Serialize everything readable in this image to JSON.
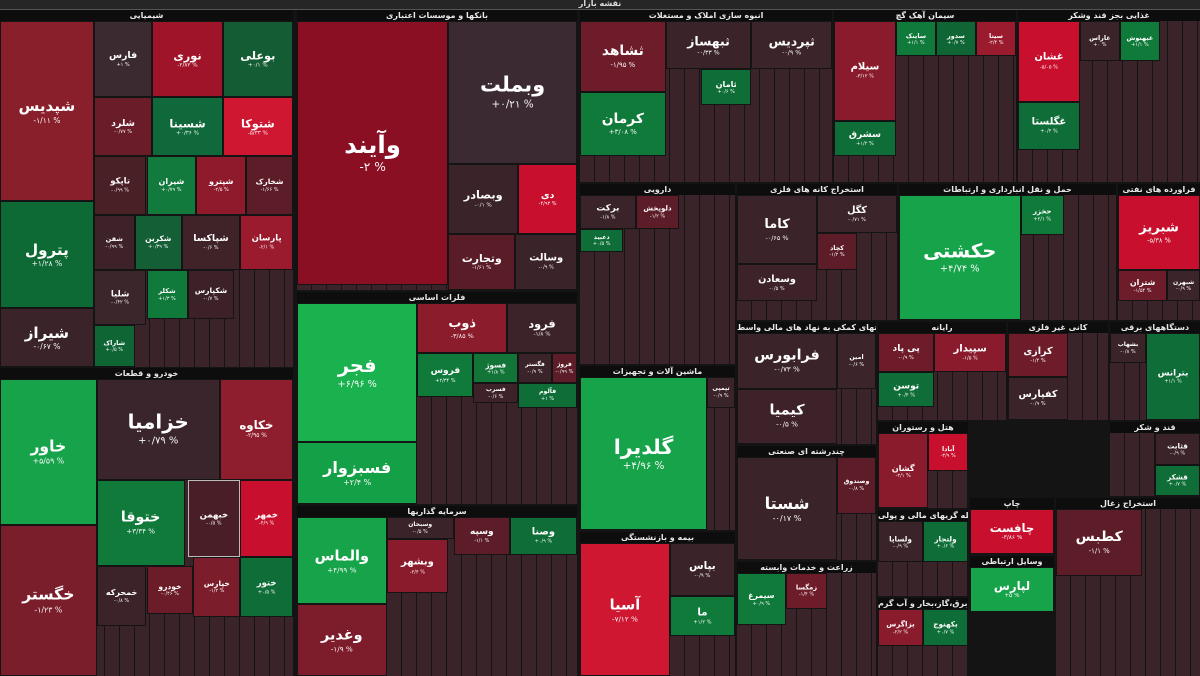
{
  "header": {
    "title": "نقشه بازار"
  },
  "legend": {
    "negative": "#5a1a26",
    "positive": "#0f7a3a",
    "strong_negative": "#c8102e",
    "strong_positive": "#16a34a"
  },
  "sections": [
    {
      "id": "chem",
      "title": "شیمیایی",
      "tiles": [
        {
          "n": "شپدیس",
          "p": "-۱/۱۱ %",
          "c": "#8a1f2c"
        },
        {
          "n": "پترول",
          "p": "+۱/۲۸ %",
          "c": "#0e6a35"
        },
        {
          "n": "شیراز",
          "p": "-۰/۶۷ %",
          "c": "#3a2329"
        },
        {
          "n": "فارس",
          "p": "+۱ %",
          "c": "#3c2a31"
        },
        {
          "n": "نوری",
          "p": "-۲/۸۲ %",
          "c": "#a0142a"
        },
        {
          "n": "بوعلی",
          "p": "+۰/۱ %",
          "c": "#145c33"
        },
        {
          "n": "شلرد",
          "p": "-۰/۷۷ %",
          "c": "#6a1c28"
        },
        {
          "n": "شسینا",
          "p": "+۰/۳۶ %",
          "c": "#10693a"
        },
        {
          "n": "شتوکا",
          "p": "-۵/۳۳ %",
          "c": "#d01731"
        },
        {
          "n": "تاپکو",
          "p": "-۰/۹۹ %",
          "c": "#4a2027"
        },
        {
          "n": "شیران",
          "p": "+۰/۷۹ %",
          "c": "#137a3e"
        },
        {
          "n": "شپترو",
          "p": "-۲/۵ %",
          "c": "#8e1a2b"
        },
        {
          "n": "شخارک",
          "p": "-۱/۶۶ %",
          "c": "#5c1d28"
        },
        {
          "n": "شفن",
          "p": "-۰/۹۹ %",
          "c": "#3d2229"
        },
        {
          "n": "شکربن",
          "p": "+۰/۳۹ %",
          "c": "#145f36"
        },
        {
          "n": "شپاکسا",
          "p": "-۰/۶ %",
          "c": "#402328"
        },
        {
          "n": "پارسان",
          "p": "-۲/۱ %",
          "c": "#9a1b2d"
        },
        {
          "n": "شلیا",
          "p": "-۰/۴۲ %",
          "c": "#3b262c"
        },
        {
          "n": "شکلر",
          "p": "+۱/۳ %",
          "c": "#0f7a3a"
        },
        {
          "n": "شکپارس",
          "p": "-۰/۷ %",
          "c": "#3c2228"
        },
        {
          "n": "شاراک",
          "p": "+۰/۵ %",
          "c": "#0f6634"
        }
      ]
    },
    {
      "id": "auto",
      "title": "خودرو و قطعات",
      "tiles": [
        {
          "n": "خاور",
          "p": "+۵/۵۹ %",
          "c": "#16a34a"
        },
        {
          "n": "خگستر",
          "p": "-۱/۲۳ %",
          "c": "#7a1e2c"
        },
        {
          "n": "خزامیا",
          "p": "+۰/۷۹ %",
          "c": "#3b252c"
        },
        {
          "n": "خکاوه",
          "p": "-۲/۹۵ %",
          "c": "#8e1d2d"
        },
        {
          "n": "ختوقا",
          "p": "+۳/۳۴ %",
          "c": "#0f7a3a"
        },
        {
          "n": "خبهمن",
          "p": "-۰/۵ %",
          "c": "#4a1e27"
        },
        {
          "n": "خمهر",
          "p": "-۴/۹ %",
          "c": "#c8102e"
        },
        {
          "n": "خمحرکه",
          "p": "-۰/۸ %",
          "c": "#3b2329"
        },
        {
          "n": "ختور",
          "p": "+۰/۵ %",
          "c": "#0f6e37"
        },
        {
          "n": "خودرو",
          "p": "-۰/۴۶ %",
          "c": "#6b1c28"
        },
        {
          "n": "خپارس",
          "p": "-۱/۲ %",
          "c": "#7c1d2b"
        }
      ]
    },
    {
      "id": "bank",
      "title": "بانکها و موسسات اعتباری",
      "tiles": [
        {
          "n": "وآیند",
          "p": "-۲ %",
          "c": "#8a0f22"
        },
        {
          "n": "وبملت",
          "p": "+۰/۲۱ %",
          "c": "#3b2a32"
        },
        {
          "n": "وبصادر",
          "p": "-۰/۱ %",
          "c": "#3a2329"
        },
        {
          "n": "دی",
          "p": "-۴/۹۳ %",
          "c": "#c8102e"
        },
        {
          "n": "وتجارت",
          "p": "-۱/۶۱ %",
          "c": "#5a1c27"
        },
        {
          "n": "وسالت",
          "p": "-۰/۹ %",
          "c": "#3a2329"
        }
      ]
    },
    {
      "id": "metal",
      "title": "فلزات اساسی",
      "tiles": [
        {
          "n": "فجر",
          "p": "+۶/۹۶ %",
          "c": "#19b24f"
        },
        {
          "n": "فسبزوار",
          "p": "+۲/۴ %",
          "c": "#14a046"
        },
        {
          "n": "ذوب",
          "p": "-۳/۸۵ %",
          "c": "#8a1c2c"
        },
        {
          "n": "فرود",
          "p": "-۱/۸ %",
          "c": "#3c2329"
        },
        {
          "n": "فروس",
          "p": "+۲/۳۴ %",
          "c": "#0f7a3a"
        },
        {
          "n": "فسوژ",
          "p": "+۱/۸ %",
          "c": "#137438"
        },
        {
          "n": "فگستر",
          "p": "-۰/۹ %",
          "c": "#3a2329"
        },
        {
          "n": "فروژ",
          "p": "-۰/۹۹ %",
          "c": "#5c1d29"
        },
        {
          "n": "فآلوم",
          "p": "+۱ %",
          "c": "#0f6e37"
        },
        {
          "n": "فسرب",
          "p": "-۰/۶ %",
          "c": "#3d2229"
        }
      ]
    },
    {
      "id": "invest",
      "title": "سرمایه گذاریها",
      "tiles": [
        {
          "n": "والماس",
          "p": "+۴/۹۹ %",
          "c": "#16a34a"
        },
        {
          "n": "وبشهر",
          "p": "-۲/۴ %",
          "c": "#8a1b2c"
        },
        {
          "n": "وسپه",
          "p": "-۱/۱ %",
          "c": "#5c1d28"
        },
        {
          "n": "وصنا",
          "p": "+۰/۹ %",
          "c": "#0f6e37"
        },
        {
          "n": "وسبحان",
          "p": "-۰/۵ %",
          "c": "#3a2329"
        },
        {
          "n": "وغدیر",
          "p": "-۱/۹ %",
          "c": "#7d1d2b"
        }
      ]
    },
    {
      "id": "real",
      "title": "انبوه سازی املاک و مستغلات",
      "tiles": [
        {
          "n": "ثشاهد",
          "p": "-۱/۹۵ %",
          "c": "#6e1c2a"
        },
        {
          "n": "ثبهساز",
          "p": "-۰/۳۳ %",
          "c": "#3a2329"
        },
        {
          "n": "ثپردیس",
          "p": "-۰/۹ %",
          "c": "#3b252b"
        },
        {
          "n": "کرمان",
          "p": "+۳/۰۸ %",
          "c": "#0f7a3a"
        },
        {
          "n": "ثامان",
          "p": "+۰/۶ %",
          "c": "#0f6e37"
        }
      ]
    },
    {
      "id": "cement",
      "title": "سیمان آهک گچ",
      "tiles": [
        {
          "n": "سیلام",
          "p": "-۳/۱۲ %",
          "c": "#8a1b2c"
        },
        {
          "n": "سشرق",
          "p": "+۱/۲ %",
          "c": "#0f6e37"
        },
        {
          "n": "ساینک",
          "p": "+۱/۱ %",
          "c": "#0f7a3a"
        },
        {
          "n": "سدور",
          "p": "+۰/۷ %",
          "c": "#0f6634"
        },
        {
          "n": "سیتا",
          "p": "-۲/۴ %",
          "c": "#9a1b2d"
        }
      ]
    },
    {
      "id": "food",
      "title": "غذایی بجز قند وشکر",
      "tiles": [
        {
          "n": "غشان",
          "p": "-۵/۰۵ %",
          "c": "#c8102e"
        },
        {
          "n": "غگلستا",
          "p": "+۰/۴ %",
          "c": "#0f6e37"
        },
        {
          "n": "غاراس",
          "p": "+۰ %",
          "c": "#3a2329"
        },
        {
          "n": "غبهنوش",
          "p": "+۱/۱ %",
          "c": "#0f7a3a"
        }
      ]
    },
    {
      "id": "mine",
      "title": "استخراج کانه های فلزی",
      "tiles": [
        {
          "n": "کاما",
          "p": "-۰/۶۵ %",
          "c": "#3a2329"
        },
        {
          "n": "کگل",
          "p": "-۰/۷۱ %",
          "c": "#3b252b"
        },
        {
          "n": "کچاد",
          "p": "-۱/۲ %",
          "c": "#5c1d28"
        },
        {
          "n": "وسعادن",
          "p": "-۰/۵ %",
          "c": "#3d2229"
        }
      ]
    },
    {
      "id": "transport",
      "title": "حمل و نقل انبارداری و ارتباطات",
      "tiles": [
        {
          "n": "حکشتی",
          "p": "+۴/۷۴ %",
          "c": "#16a34a"
        },
        {
          "n": "حخزر",
          "p": "+۲/۱ %",
          "c": "#0f7a3a"
        }
      ]
    },
    {
      "id": "oil",
      "title": "فراورده های نفتی",
      "tiles": [
        {
          "n": "شبریز",
          "p": "-۵/۳۸ %",
          "c": "#c8102e"
        },
        {
          "n": "شتران",
          "p": "-۱/۵۴ %",
          "c": "#6e1c2a"
        },
        {
          "n": "شبهرن",
          "p": "-۰/۹ %",
          "c": "#3b252b"
        }
      ]
    },
    {
      "id": "pharma",
      "title": "دارویی",
      "tiles": [
        {
          "n": "برکت",
          "p": "-۱/۸ %",
          "c": "#3a2329"
        },
        {
          "n": "دلوپخش",
          "p": "-۱/۲ %",
          "c": "#5c1d28"
        },
        {
          "n": "دعبید",
          "p": "+۰/۵ %",
          "c": "#0f6e37"
        }
      ]
    },
    {
      "id": "machine",
      "title": "ماشین آلات و تجهیزات",
      "tiles": [
        {
          "n": "گلدیرا",
          "p": "+۴/۹۶ %",
          "c": "#16a34a"
        },
        {
          "n": "تپمپی",
          "p": "-۰/۹ %",
          "c": "#3a2329"
        }
      ]
    },
    {
      "id": "insur",
      "title": "بیمه و بازنشستگی",
      "tiles": [
        {
          "n": "آسیا",
          "p": "-۷/۱۲ %",
          "c": "#d01731"
        },
        {
          "n": "بپاس",
          "p": "-۰/۹ %",
          "c": "#3a2329"
        },
        {
          "n": "ما",
          "p": "+۱/۲ %",
          "c": "#0f7a3a"
        }
      ]
    },
    {
      "id": "service",
      "title": "فعالیتهای کمکی به نهاد های مالی واسط",
      "tiles": [
        {
          "n": "فرابورس",
          "p": "-۰/۷۳ %",
          "c": "#3a2329"
        },
        {
          "n": "امین",
          "p": "-۰/۶ %",
          "c": "#3b252b"
        },
        {
          "n": "کیمیا",
          "p": "-۰/۵ %",
          "c": "#3d2229"
        }
      ]
    },
    {
      "id": "chand",
      "title": "چندرشته ای صنعتی",
      "tiles": [
        {
          "n": "شستا",
          "p": "-۰/۱۷ %",
          "c": "#3a2329"
        },
        {
          "n": "وصندوق",
          "p": "-۰/۸ %",
          "c": "#5c1d28"
        }
      ]
    },
    {
      "id": "computer",
      "title": "رایانه",
      "tiles": [
        {
          "n": "پی پاد",
          "p": "-۰/۹ %",
          "c": "#6e1c2a"
        },
        {
          "n": "سپیدار",
          "p": "-۱/۵ %",
          "c": "#8a1b2c"
        },
        {
          "n": "توسن",
          "p": "+۰/۴ %",
          "c": "#0f6e37"
        }
      ]
    },
    {
      "id": "hotel",
      "title": "هتل و رستوران",
      "tiles": [
        {
          "n": "گشان",
          "p": "-۲/۱ %",
          "c": "#8a1b2c"
        },
        {
          "n": "آبادا",
          "p": "-۳/۹ %",
          "c": "#c8102e"
        }
      ]
    },
    {
      "id": "ore",
      "title": "کانی غیر فلزی",
      "tiles": [
        {
          "n": "کرازی",
          "p": "-۱/۴ %",
          "c": "#6e1c2a"
        },
        {
          "n": "کفپارس",
          "p": "-۰/۹ %",
          "c": "#3a2329"
        }
      ]
    },
    {
      "id": "elec",
      "title": "دستگاههای برقی",
      "tiles": [
        {
          "n": "بترانس",
          "p": "+۱/۱ %",
          "c": "#0f6e37"
        },
        {
          "n": "بشهاب",
          "p": "-۰/۸ %",
          "c": "#3a2329"
        }
      ]
    },
    {
      "id": "sugar",
      "title": "قند و شکر",
      "tiles": [
        {
          "n": "قثابت",
          "p": "-۰/۹ %",
          "c": "#3a2329"
        },
        {
          "n": "قشکر",
          "p": "+۰/۷ %",
          "c": "#0f6e37"
        }
      ]
    },
    {
      "id": "print",
      "title": "چاپ",
      "tiles": [
        {
          "n": "چافست",
          "p": "-۳/۸۶ %",
          "c": "#c8102e"
        }
      ]
    },
    {
      "id": "telecom",
      "title": "وسایل ارتباطی",
      "tiles": [
        {
          "n": "لپارس",
          "p": "+۵ %",
          "c": "#16a34a"
        }
      ]
    },
    {
      "id": "agri",
      "title": "زراعت و خدمات وابسته",
      "tiles": [
        {
          "n": "سیمرغ",
          "p": "+۰/۹ %",
          "c": "#0f7a3a"
        },
        {
          "n": "زمگسا",
          "p": "-۱/۴ %",
          "c": "#6e1c2a"
        }
      ]
    },
    {
      "id": "util",
      "title": "عرضه برق،گاز،بخار و آب گرم",
      "tiles": [
        {
          "n": "بزاگرس",
          "p": "-۲/۲ %",
          "c": "#8a1b2c"
        },
        {
          "n": "بکهنوج",
          "p": "+۰/۷ %",
          "c": "#0f6e37"
        }
      ]
    },
    {
      "id": "fin",
      "title": "واسطه گریهای مالی و پولی",
      "tiles": [
        {
          "n": "ولساپا",
          "p": "-۰/۹ %",
          "c": "#3a2329"
        },
        {
          "n": "ولتجار",
          "p": "+۰/۶ %",
          "c": "#0f6e37"
        }
      ]
    },
    {
      "id": "etc",
      "title": "استخراج زغال",
      "tiles": [
        {
          "n": "کطبس",
          "p": "-۱/۱ %",
          "c": "#5c1d28"
        }
      ]
    }
  ]
}
